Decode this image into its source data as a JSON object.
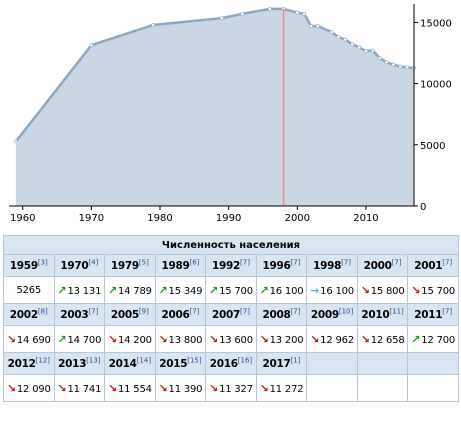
{
  "colors": {
    "area_fill": "#c9d6e3",
    "line": "#8fa6bf",
    "marker": "#ffffff",
    "highlight_line": "#f08a80",
    "header_bg": "#d8e6f4",
    "border": "#b5c7d8",
    "arrow_up": "#1a9a1a",
    "arrow_down": "#d01010",
    "arrow_flat": "#5aaee8"
  },
  "chart_data": {
    "type": "area",
    "title": "",
    "xlabel": "",
    "ylabel": "",
    "xlim": [
      1958,
      2017
    ],
    "ylim": [
      0,
      16500
    ],
    "x_ticks": [
      1960,
      1970,
      1980,
      1990,
      2000,
      2010
    ],
    "y_ticks": [
      0,
      5000,
      10000,
      15000
    ],
    "y_tick_labels": [
      "0",
      "5000",
      "10000",
      "15000"
    ],
    "highlight_x": 1998,
    "series": [
      {
        "x": [
          1959,
          1970,
          1979,
          1989,
          1992,
          1996,
          1998,
          2000,
          2001,
          2002,
          2003,
          2005,
          2006,
          2007,
          2008,
          2009,
          2010,
          2011,
          2012,
          2013,
          2014,
          2015,
          2016,
          2017
        ],
        "y": [
          5265,
          13131,
          14789,
          15349,
          15700,
          16100,
          16100,
          15800,
          15700,
          14690,
          14700,
          14200,
          13800,
          13600,
          13200,
          12962,
          12658,
          12700,
          12090,
          11741,
          11554,
          11390,
          11327,
          11272
        ]
      }
    ]
  },
  "table": {
    "title": "Численность населения",
    "rows": [
      {
        "cells": [
          {
            "year": "1959",
            "ref": "[3]",
            "value": "5265",
            "trend": "none"
          },
          {
            "year": "1970",
            "ref": "[4]",
            "value": "13 131",
            "trend": "up"
          },
          {
            "year": "1979",
            "ref": "[5]",
            "value": "14 789",
            "trend": "up"
          },
          {
            "year": "1989",
            "ref": "[6]",
            "value": "15 349",
            "trend": "up"
          },
          {
            "year": "1992",
            "ref": "[7]",
            "value": "15 700",
            "trend": "up"
          },
          {
            "year": "1996",
            "ref": "[7]",
            "value": "16 100",
            "trend": "up"
          },
          {
            "year": "1998",
            "ref": "[7]",
            "value": "16 100",
            "trend": "flat"
          },
          {
            "year": "2000",
            "ref": "[7]",
            "value": "15 800",
            "trend": "down"
          },
          {
            "year": "2001",
            "ref": "[7]",
            "value": "15 700",
            "trend": "down"
          }
        ]
      },
      {
        "cells": [
          {
            "year": "2002",
            "ref": "[8]",
            "value": "14 690",
            "trend": "down"
          },
          {
            "year": "2003",
            "ref": "[7]",
            "value": "14 700",
            "trend": "up"
          },
          {
            "year": "2005",
            "ref": "[9]",
            "value": "14 200",
            "trend": "down"
          },
          {
            "year": "2006",
            "ref": "[7]",
            "value": "13 800",
            "trend": "down"
          },
          {
            "year": "2007",
            "ref": "[7]",
            "value": "13 600",
            "trend": "down"
          },
          {
            "year": "2008",
            "ref": "[7]",
            "value": "13 200",
            "trend": "down"
          },
          {
            "year": "2009",
            "ref": "[10]",
            "value": "12 962",
            "trend": "down"
          },
          {
            "year": "2010",
            "ref": "[11]",
            "value": "12 658",
            "trend": "down"
          },
          {
            "year": "2011",
            "ref": "[7]",
            "value": "12 700",
            "trend": "up"
          }
        ]
      },
      {
        "cells": [
          {
            "year": "2012",
            "ref": "[12]",
            "value": "12 090",
            "trend": "down"
          },
          {
            "year": "2013",
            "ref": "[13]",
            "value": "11 741",
            "trend": "down"
          },
          {
            "year": "2014",
            "ref": "[14]",
            "value": "11 554",
            "trend": "down"
          },
          {
            "year": "2015",
            "ref": "[15]",
            "value": "11 390",
            "trend": "down"
          },
          {
            "year": "2016",
            "ref": "[16]",
            "value": "11 327",
            "trend": "down"
          },
          {
            "year": "2017",
            "ref": "[1]",
            "value": "11 272",
            "trend": "down"
          }
        ]
      }
    ]
  }
}
